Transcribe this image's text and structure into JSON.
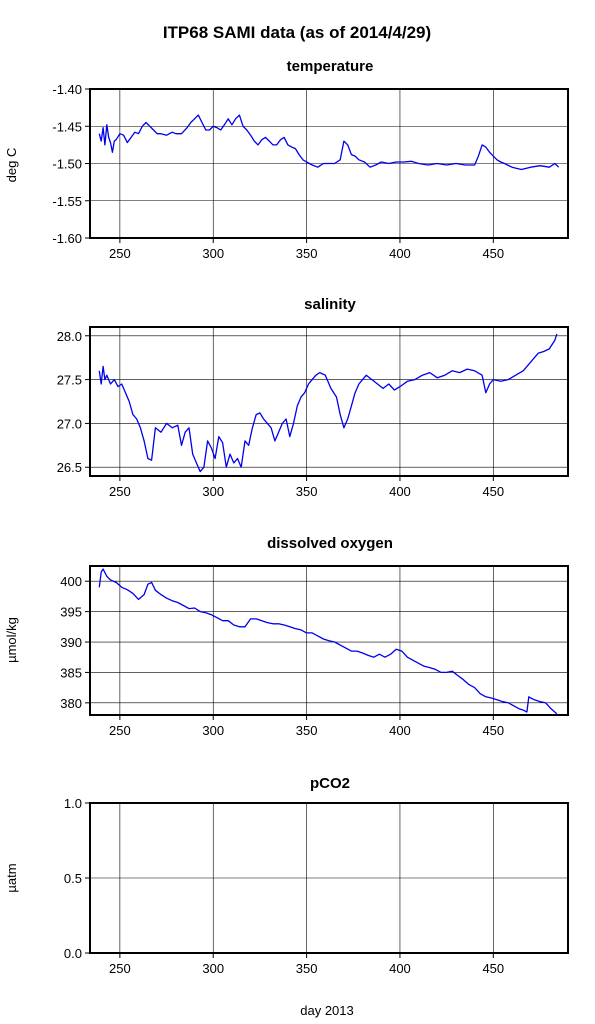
{
  "title": "ITP68 SAMI data (as of 2014/4/29)",
  "xlabel": "day 2013",
  "colors": {
    "series": "#0000ee",
    "axis": "#000000"
  },
  "chart_data": [
    {
      "type": "line",
      "title": "temperature",
      "ylabel": "deg C",
      "xlim": [
        234,
        490
      ],
      "ylim": [
        -1.6,
        -1.4
      ],
      "xticks": [
        250,
        300,
        350,
        400,
        450
      ],
      "yticks": [
        -1.6,
        -1.55,
        -1.5,
        -1.45,
        -1.4
      ],
      "xtick_labels": [
        "250",
        "300",
        "350",
        "400",
        "450"
      ],
      "ytick_labels": [
        "-1.60",
        "-1.55",
        "-1.50",
        "-1.45",
        "-1.40"
      ],
      "grid": true,
      "series": [
        {
          "x": [
            239,
            240,
            241,
            242,
            243,
            244,
            245,
            246,
            247,
            248,
            250,
            252,
            254,
            256,
            258,
            260,
            262,
            264,
            266,
            268,
            270,
            272,
            275,
            278,
            280,
            283,
            286,
            288,
            290,
            292,
            294,
            296,
            298,
            300,
            302,
            304,
            306,
            308,
            310,
            312,
            314,
            316,
            318,
            320,
            322,
            324,
            326,
            328,
            330,
            332,
            334,
            336,
            338,
            340,
            342,
            344,
            346,
            348,
            350,
            353,
            356,
            359,
            362,
            365,
            368,
            370,
            372,
            374,
            376,
            378,
            381,
            384,
            387,
            390,
            394,
            398,
            402,
            406,
            410,
            415,
            420,
            425,
            430,
            435,
            440,
            442,
            444,
            446,
            448,
            450,
            452,
            454,
            456,
            460,
            465,
            470,
            475,
            480,
            483,
            485
          ],
          "y": [
            -1.46,
            -1.47,
            -1.452,
            -1.475,
            -1.448,
            -1.465,
            -1.472,
            -1.485,
            -1.47,
            -1.468,
            -1.46,
            -1.462,
            -1.472,
            -1.465,
            -1.458,
            -1.46,
            -1.45,
            -1.445,
            -1.45,
            -1.455,
            -1.46,
            -1.46,
            -1.462,
            -1.458,
            -1.46,
            -1.46,
            -1.452,
            -1.445,
            -1.44,
            -1.435,
            -1.445,
            -1.455,
            -1.455,
            -1.45,
            -1.452,
            -1.455,
            -1.448,
            -1.44,
            -1.448,
            -1.44,
            -1.435,
            -1.45,
            -1.455,
            -1.462,
            -1.47,
            -1.475,
            -1.468,
            -1.465,
            -1.47,
            -1.475,
            -1.475,
            -1.468,
            -1.465,
            -1.475,
            -1.478,
            -1.48,
            -1.488,
            -1.495,
            -1.498,
            -1.502,
            -1.505,
            -1.5,
            -1.5,
            -1.5,
            -1.495,
            -1.47,
            -1.475,
            -1.488,
            -1.49,
            -1.495,
            -1.498,
            -1.505,
            -1.502,
            -1.498,
            -1.5,
            -1.498,
            -1.498,
            -1.497,
            -1.5,
            -1.502,
            -1.5,
            -1.502,
            -1.5,
            -1.502,
            -1.502,
            -1.49,
            -1.475,
            -1.478,
            -1.485,
            -1.49,
            -1.495,
            -1.498,
            -1.5,
            -1.505,
            -1.508,
            -1.505,
            -1.503,
            -1.505,
            -1.5,
            -1.505
          ]
        }
      ]
    },
    {
      "type": "line",
      "title": "salinity",
      "ylabel": "",
      "xlim": [
        234,
        490
      ],
      "ylim": [
        26.4,
        28.1
      ],
      "xticks": [
        250,
        300,
        350,
        400,
        450
      ],
      "yticks": [
        26.5,
        27.0,
        27.5,
        28.0
      ],
      "xtick_labels": [
        "250",
        "300",
        "350",
        "400",
        "450"
      ],
      "ytick_labels": [
        "26.5",
        "27.0",
        "27.5",
        "28.0"
      ],
      "grid": true,
      "series": [
        {
          "x": [
            239,
            240,
            241,
            242,
            243,
            245,
            247,
            249,
            251,
            253,
            255,
            257,
            259,
            261,
            263,
            265,
            267,
            269,
            272,
            275,
            278,
            281,
            283,
            285,
            287,
            289,
            291,
            293,
            295,
            297,
            299,
            301,
            303,
            305,
            307,
            309,
            311,
            313,
            315,
            317,
            319,
            321,
            323,
            325,
            327,
            329,
            331,
            333,
            335,
            337,
            339,
            341,
            343,
            345,
            347,
            349,
            351,
            353,
            355,
            357,
            360,
            363,
            366,
            368,
            370,
            372,
            374,
            376,
            378,
            380,
            382,
            385,
            388,
            391,
            394,
            397,
            400,
            404,
            408,
            412,
            416,
            420,
            424,
            428,
            432,
            436,
            440,
            444,
            446,
            448,
            450,
            454,
            458,
            462,
            466,
            470,
            474,
            477,
            480,
            483,
            484
          ],
          "y": [
            27.6,
            27.45,
            27.65,
            27.5,
            27.55,
            27.45,
            27.5,
            27.42,
            27.45,
            27.35,
            27.25,
            27.1,
            27.05,
            26.95,
            26.8,
            26.6,
            26.58,
            26.95,
            26.9,
            27.0,
            26.95,
            26.98,
            26.75,
            26.9,
            26.95,
            26.65,
            26.55,
            26.45,
            26.5,
            26.8,
            26.72,
            26.6,
            26.85,
            26.78,
            26.5,
            26.65,
            26.55,
            26.6,
            26.5,
            26.8,
            26.75,
            26.95,
            27.1,
            27.12,
            27.05,
            27.0,
            26.95,
            26.8,
            26.9,
            27.0,
            27.05,
            26.85,
            27.0,
            27.2,
            27.3,
            27.35,
            27.45,
            27.5,
            27.55,
            27.58,
            27.55,
            27.4,
            27.3,
            27.1,
            26.95,
            27.05,
            27.2,
            27.35,
            27.45,
            27.5,
            27.55,
            27.5,
            27.45,
            27.4,
            27.45,
            27.38,
            27.42,
            27.48,
            27.5,
            27.55,
            27.58,
            27.52,
            27.55,
            27.6,
            27.58,
            27.62,
            27.6,
            27.55,
            27.35,
            27.45,
            27.5,
            27.48,
            27.5,
            27.55,
            27.6,
            27.7,
            27.8,
            27.82,
            27.85,
            27.95,
            28.02
          ]
        }
      ]
    },
    {
      "type": "line",
      "title": "dissolved oxygen",
      "ylabel": "µmol/kg",
      "xlim": [
        234,
        490
      ],
      "ylim": [
        378,
        402.5
      ],
      "xticks": [
        250,
        300,
        350,
        400,
        450
      ],
      "yticks": [
        380,
        385,
        390,
        395,
        400
      ],
      "xtick_labels": [
        "250",
        "300",
        "350",
        "400",
        "450"
      ],
      "ytick_labels": [
        "380",
        "385",
        "390",
        "395",
        "400"
      ],
      "grid": true,
      "series": [
        {
          "x": [
            239,
            240,
            241,
            243,
            245,
            248,
            251,
            254,
            257,
            260,
            263,
            265,
            267,
            269,
            272,
            275,
            278,
            281,
            284,
            287,
            290,
            293,
            296,
            299,
            302,
            305,
            308,
            311,
            314,
            317,
            320,
            323,
            326,
            329,
            332,
            335,
            338,
            341,
            344,
            347,
            350,
            353,
            356,
            359,
            362,
            365,
            368,
            371,
            374,
            377,
            380,
            383,
            386,
            389,
            392,
            395,
            398,
            401,
            404,
            407,
            410,
            413,
            416,
            419,
            422,
            425,
            428,
            431,
            434,
            437,
            440,
            443,
            446,
            449,
            452,
            455,
            458,
            461,
            464,
            466,
            468,
            469,
            470,
            472,
            475,
            478,
            481,
            484
          ],
          "y": [
            399.0,
            401.5,
            402.0,
            400.8,
            400.2,
            399.8,
            399.0,
            398.6,
            398.0,
            397.0,
            397.8,
            399.5,
            399.8,
            398.5,
            397.8,
            397.2,
            396.8,
            396.5,
            396.0,
            395.5,
            395.6,
            395.0,
            394.8,
            394.5,
            394.0,
            393.5,
            393.5,
            392.8,
            392.5,
            392.5,
            393.8,
            393.8,
            393.5,
            393.2,
            393.0,
            393.0,
            392.8,
            392.5,
            392.2,
            392.0,
            391.5,
            391.5,
            391.0,
            390.5,
            390.2,
            390.0,
            389.5,
            389.0,
            388.5,
            388.5,
            388.2,
            387.8,
            387.5,
            388.0,
            387.5,
            388.0,
            388.8,
            388.5,
            387.5,
            387.0,
            386.5,
            386.0,
            385.8,
            385.5,
            385.0,
            385.0,
            385.2,
            384.5,
            383.8,
            383.0,
            382.5,
            381.5,
            381.0,
            380.8,
            380.5,
            380.2,
            380.0,
            379.5,
            379.0,
            378.8,
            378.5,
            381.0,
            380.8,
            380.5,
            380.2,
            380.0,
            379.0,
            378.2
          ]
        }
      ]
    },
    {
      "type": "line",
      "title": "pCO2",
      "ylabel": "µatm",
      "xlim": [
        234,
        490
      ],
      "ylim": [
        0,
        1
      ],
      "xticks": [
        250,
        300,
        350,
        400,
        450
      ],
      "yticks": [
        0,
        0.5,
        1.0
      ],
      "xtick_labels": [
        "250",
        "300",
        "350",
        "400",
        "450"
      ],
      "ytick_labels": [
        "0.0",
        "0.5",
        "1.0"
      ],
      "grid": true,
      "series": []
    }
  ]
}
